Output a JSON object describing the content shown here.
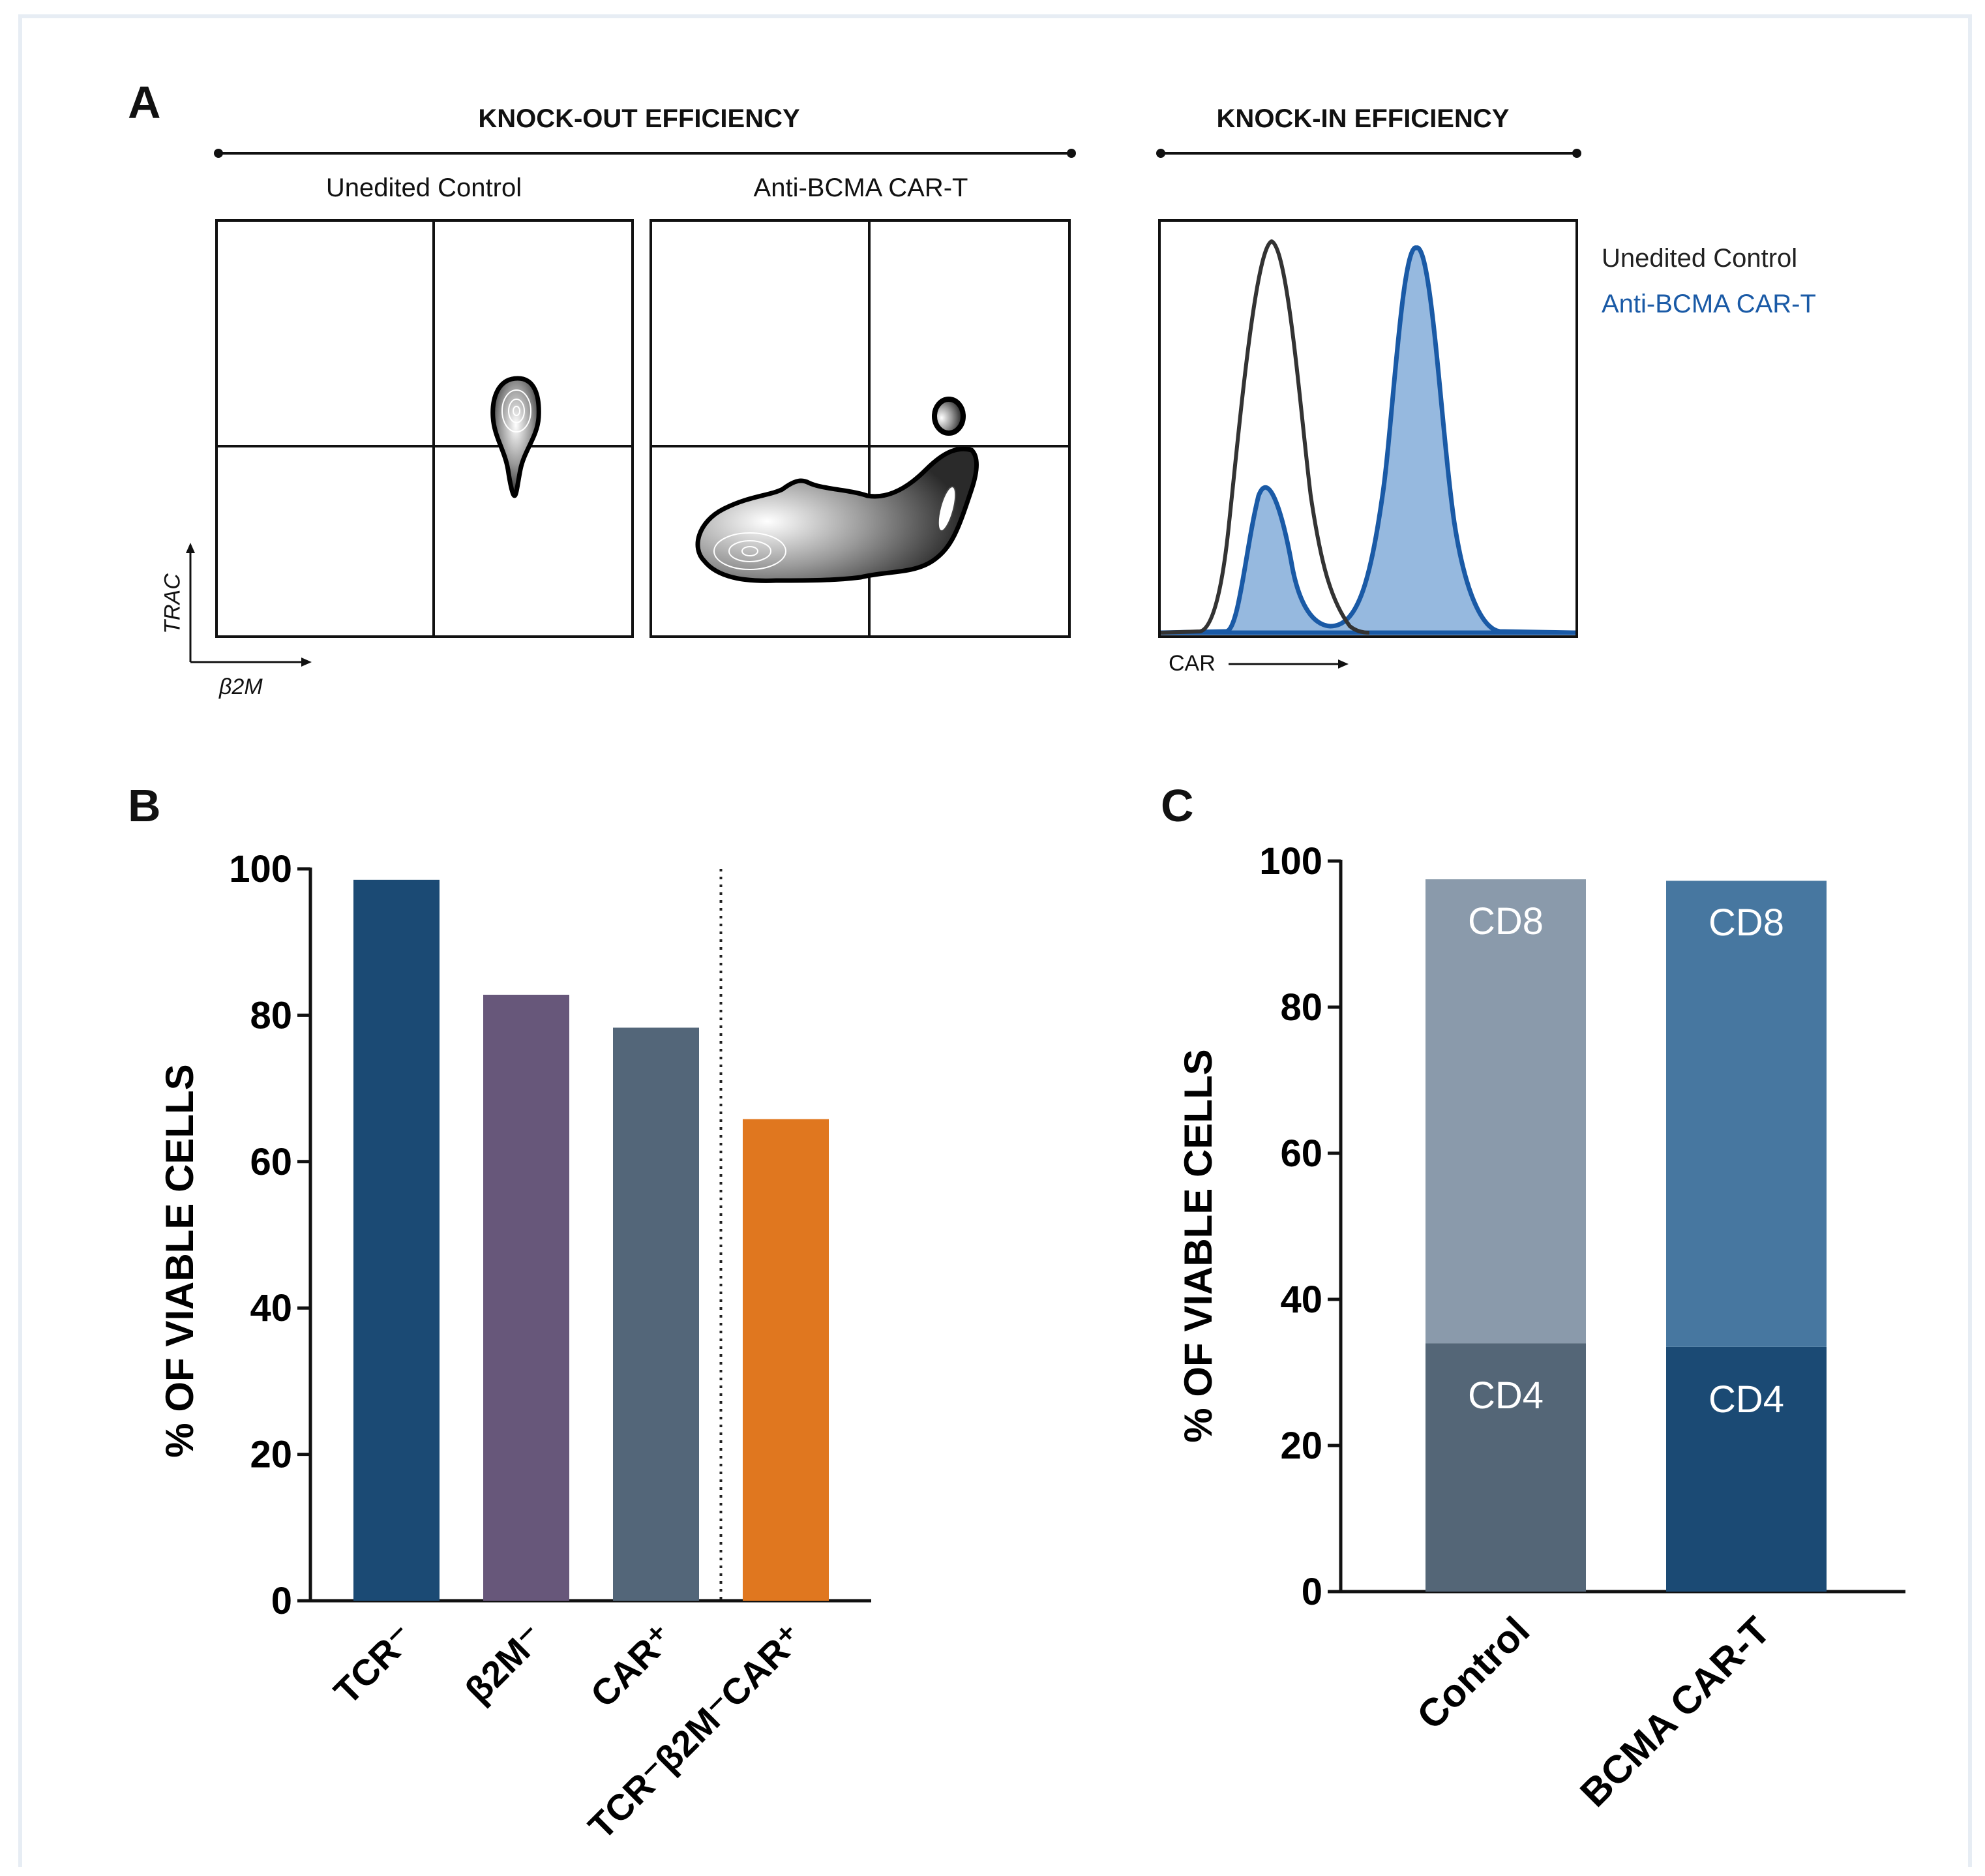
{
  "panel_a": {
    "letter": "A",
    "knockout_title": "KNOCK-OUT EFFICIENCY",
    "knockin_title": "KNOCK-IN EFFICIENCY",
    "subtitles": [
      "Unedited Control",
      "Anti-BCMA CAR-T"
    ],
    "y_axis_label": "TRAC",
    "x_axis_label": "β2M",
    "hist_x_label": "CAR",
    "legend": [
      {
        "label": "Unedited Control",
        "color": "#222222"
      },
      {
        "label": "Anti-BCMA CAR-T",
        "color": "#1a5aa6"
      }
    ]
  },
  "panel_b": {
    "letter": "B"
  },
  "panel_c": {
    "letter": "C"
  },
  "chart_data": [
    {
      "type": "bar",
      "panel": "B",
      "ylabel": "% OF VIABLE CELLS",
      "ylim": [
        0,
        100
      ],
      "yticks": [
        0,
        20,
        40,
        60,
        80,
        100
      ],
      "categories": [
        "TCR⁻",
        "β2M⁻",
        "CAR⁺",
        "TCR⁻β2M⁻CAR⁺"
      ],
      "values": [
        98.5,
        82.8,
        78.3,
        65.8
      ],
      "colors": [
        "#1b4a74",
        "#67577a",
        "#536679",
        "#e0771f"
      ],
      "separator_after_index": 2
    },
    {
      "type": "bar",
      "panel": "C",
      "stacked": true,
      "ylabel": "% OF VIABLE CELLS",
      "ylim": [
        0,
        100
      ],
      "yticks": [
        0,
        20,
        40,
        60,
        80,
        100
      ],
      "categories": [
        "Control",
        "BCMA CAR-T"
      ],
      "series": [
        {
          "name": "CD4",
          "values": [
            34,
            33.5
          ],
          "colors": [
            "#546677",
            "#1b4a74"
          ]
        },
        {
          "name": "CD8",
          "values": [
            63.5,
            63.8
          ],
          "colors": [
            "#8a9aab",
            "#4777a0"
          ]
        }
      ]
    }
  ]
}
